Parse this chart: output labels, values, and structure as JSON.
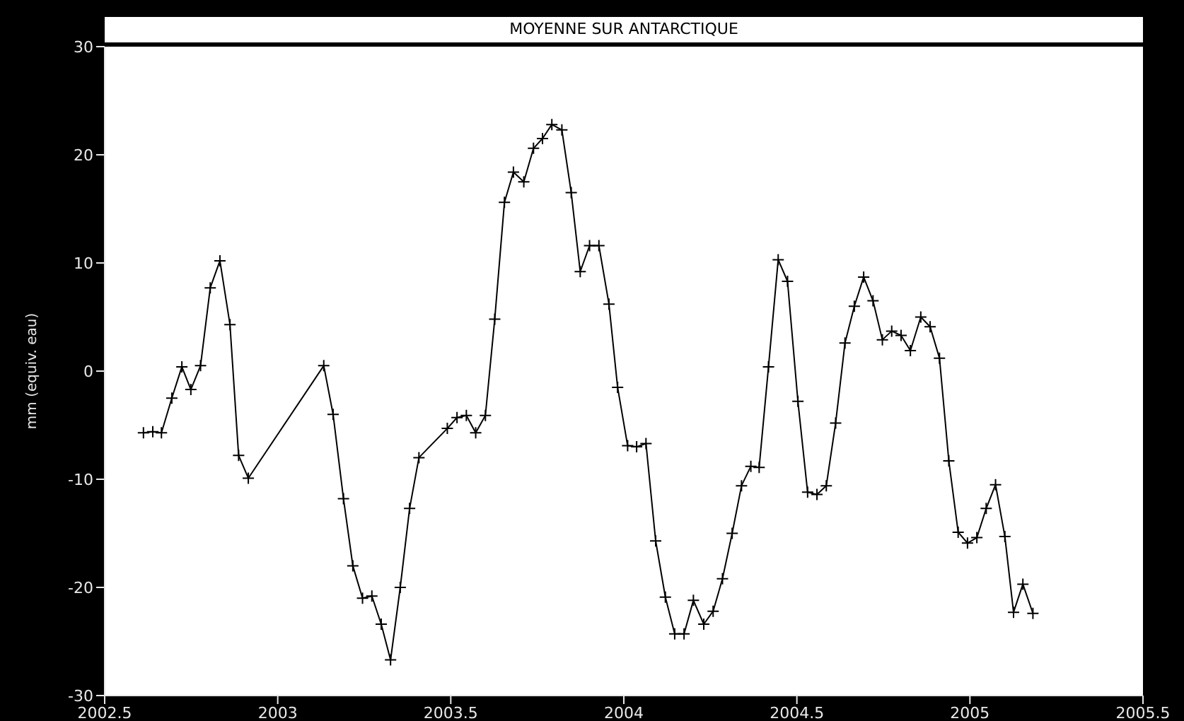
{
  "chart_data": {
    "type": "line",
    "title": "MOYENNE SUR ANTARCTIQUE",
    "ylabel": "mm (equiv. eau)",
    "xlim": [
      2002.5,
      2005.5
    ],
    "xticks": [
      2002.5,
      2003,
      2003.5,
      2004,
      2004.5,
      2005,
      2005.5
    ],
    "ylim": [
      -30,
      30
    ],
    "yticks": [
      -30,
      -20,
      -10,
      0,
      10,
      20,
      30
    ],
    "grid": false,
    "legend": false,
    "marker": "cross",
    "line_style": "solid",
    "series": [
      {
        "color": "#000000",
        "x": [
          2002.612,
          2002.639,
          2002.664,
          2002.694,
          2002.723,
          2002.749,
          2002.777,
          2002.805,
          2002.833,
          2002.862,
          2002.887,
          2002.915,
          2003.133,
          2003.16,
          2003.19,
          2003.217,
          2003.245,
          2003.272,
          2003.299,
          2003.326,
          2003.354,
          2003.381,
          2003.408,
          2003.49,
          2003.518,
          2003.545,
          2003.572,
          2003.6,
          2003.627,
          2003.655,
          2003.681,
          2003.711,
          2003.739,
          2003.765,
          2003.792,
          2003.821,
          2003.848,
          2003.874,
          2003.901,
          2003.928,
          2003.957,
          2003.982,
          2004.011,
          2004.037,
          2004.064,
          2004.092,
          2004.12,
          2004.147,
          2004.174,
          2004.201,
          2004.231,
          2004.258,
          2004.285,
          2004.313,
          2004.34,
          2004.367,
          2004.391,
          2004.418,
          2004.446,
          2004.473,
          2004.503,
          2004.531,
          2004.558,
          2004.585,
          2004.612,
          2004.639,
          2004.666,
          2004.693,
          2004.72,
          2004.747,
          2004.774,
          2004.801,
          2004.828,
          2004.858,
          2004.885,
          2004.912,
          2004.939,
          2004.966,
          2004.993,
          2005.02,
          2005.047,
          2005.074,
          2005.101,
          2005.126,
          2005.153,
          2005.182
        ],
        "values": [
          -5.7,
          -5.6,
          -5.7,
          -2.5,
          0.4,
          -1.7,
          0.5,
          7.7,
          10.2,
          4.3,
          -7.8,
          -9.9,
          0.5,
          -4,
          -11.8,
          -18,
          -21,
          -20.8,
          -23.4,
          -26.7,
          -20,
          -12.7,
          -8,
          -5.3,
          -4.3,
          -4.1,
          -5.7,
          -4.1,
          4.8,
          15.6,
          18.4,
          17.5,
          20.6,
          21.5,
          22.8,
          22.3,
          16.5,
          9.2,
          11.6,
          11.6,
          6.2,
          -1.5,
          -6.9,
          -7,
          -6.7,
          -15.7,
          -20.9,
          -24.3,
          -24.3,
          -21.2,
          -23.4,
          -22.2,
          -19.2,
          -15,
          -10.6,
          -8.8,
          -8.9,
          0.4,
          10.3,
          8.3,
          -2.8,
          -11.2,
          -11.4,
          -10.6,
          -4.8,
          2.6,
          6,
          8.7,
          6.5,
          2.9,
          3.7,
          3.3,
          1.9,
          5,
          4.1,
          1.2,
          -8.3,
          -14.9,
          -15.9,
          -15.4,
          -12.7,
          -10.5,
          -15.3,
          -22.3,
          -19.7,
          -22.4
        ]
      }
    ]
  }
}
